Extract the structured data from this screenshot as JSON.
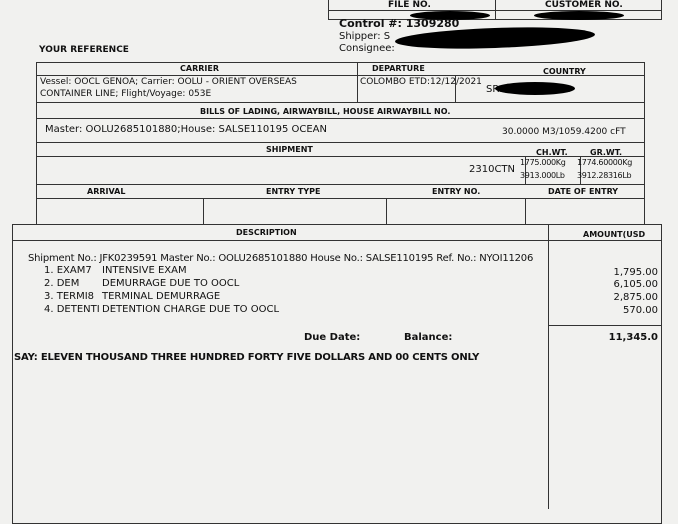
{
  "header": {
    "file_no_label": "FILE NO.",
    "customer_no_label": "CUSTOMER NO.",
    "control": "Control #: 1309280",
    "shipper_label": "Shipper: S",
    "consignee_label": "Consignee:",
    "your_reference": "YOUR REFERENCE"
  },
  "carrier": {
    "label": "CARRIER",
    "text_line1": "Vessel: OOCL GENOA; Carrier: OOLU - ORIENT OVERSEAS",
    "text_line2": "CONTAINER LINE; Flight/Voyage: 053E"
  },
  "departure": {
    "label": "DEPARTURE",
    "value": "COLOMBO ETD:12/12/2021"
  },
  "country": {
    "label": "COUNTRY",
    "value": "SR"
  },
  "bills": {
    "label": "BILLS OF LADING, AIRWAYBILL, HOUSE AIRWAYBILL NO.",
    "value": "Master: OOLU2685101880;House: SALSE110195 OCEAN",
    "volume": "30.0000 M3/1059.4200 cFT"
  },
  "shipment": {
    "label": "SHIPMENT",
    "ch_wt_label": "CH.WT.",
    "gr_wt_label": "GR.WT.",
    "pieces": "2310CTN",
    "ch_wt_kg": "1775.000Kg",
    "gr_wt_kg": "1774.60000Kg",
    "ch_wt_lb": "3913.000Lb",
    "gr_wt_lb": "3912.28316Lb"
  },
  "entry": {
    "arrival_label": "ARRIVAL",
    "entry_type_label": "ENTRY TYPE",
    "entry_no_label": "ENTRY NO.",
    "date_of_entry_label": "DATE OF ENTRY"
  },
  "invoice": {
    "description_label": "DESCRIPTION",
    "amount_label": "AMOUNT(USD",
    "shipment_line": "Shipment No.: JFK0239591  Master No.: OOLU2685101880  House No.: SALSE110195  Ref. No.: NYOI11206",
    "items": [
      {
        "code": "1. EXAM7",
        "desc": "INTENSIVE EXAM",
        "amount": "1,795.00"
      },
      {
        "code": "2. DEM",
        "desc": "DEMURRAGE DUE TO OOCL",
        "amount": "6,105.00"
      },
      {
        "code": "3. TERMI8",
        "desc": "TERMINAL DEMURRAGE",
        "amount": "2,875.00"
      },
      {
        "code": "4. DETENTI",
        "desc": "DETENTION CHARGE DUE TO OOCL",
        "amount": "570.00"
      }
    ],
    "due_date_label": "Due Date:",
    "balance_label": "Balance:",
    "balance": "11,345.0",
    "say": "SAY: ELEVEN THOUSAND THREE HUNDRED FORTY FIVE DOLLARS AND 00 CENTS ONLY"
  }
}
